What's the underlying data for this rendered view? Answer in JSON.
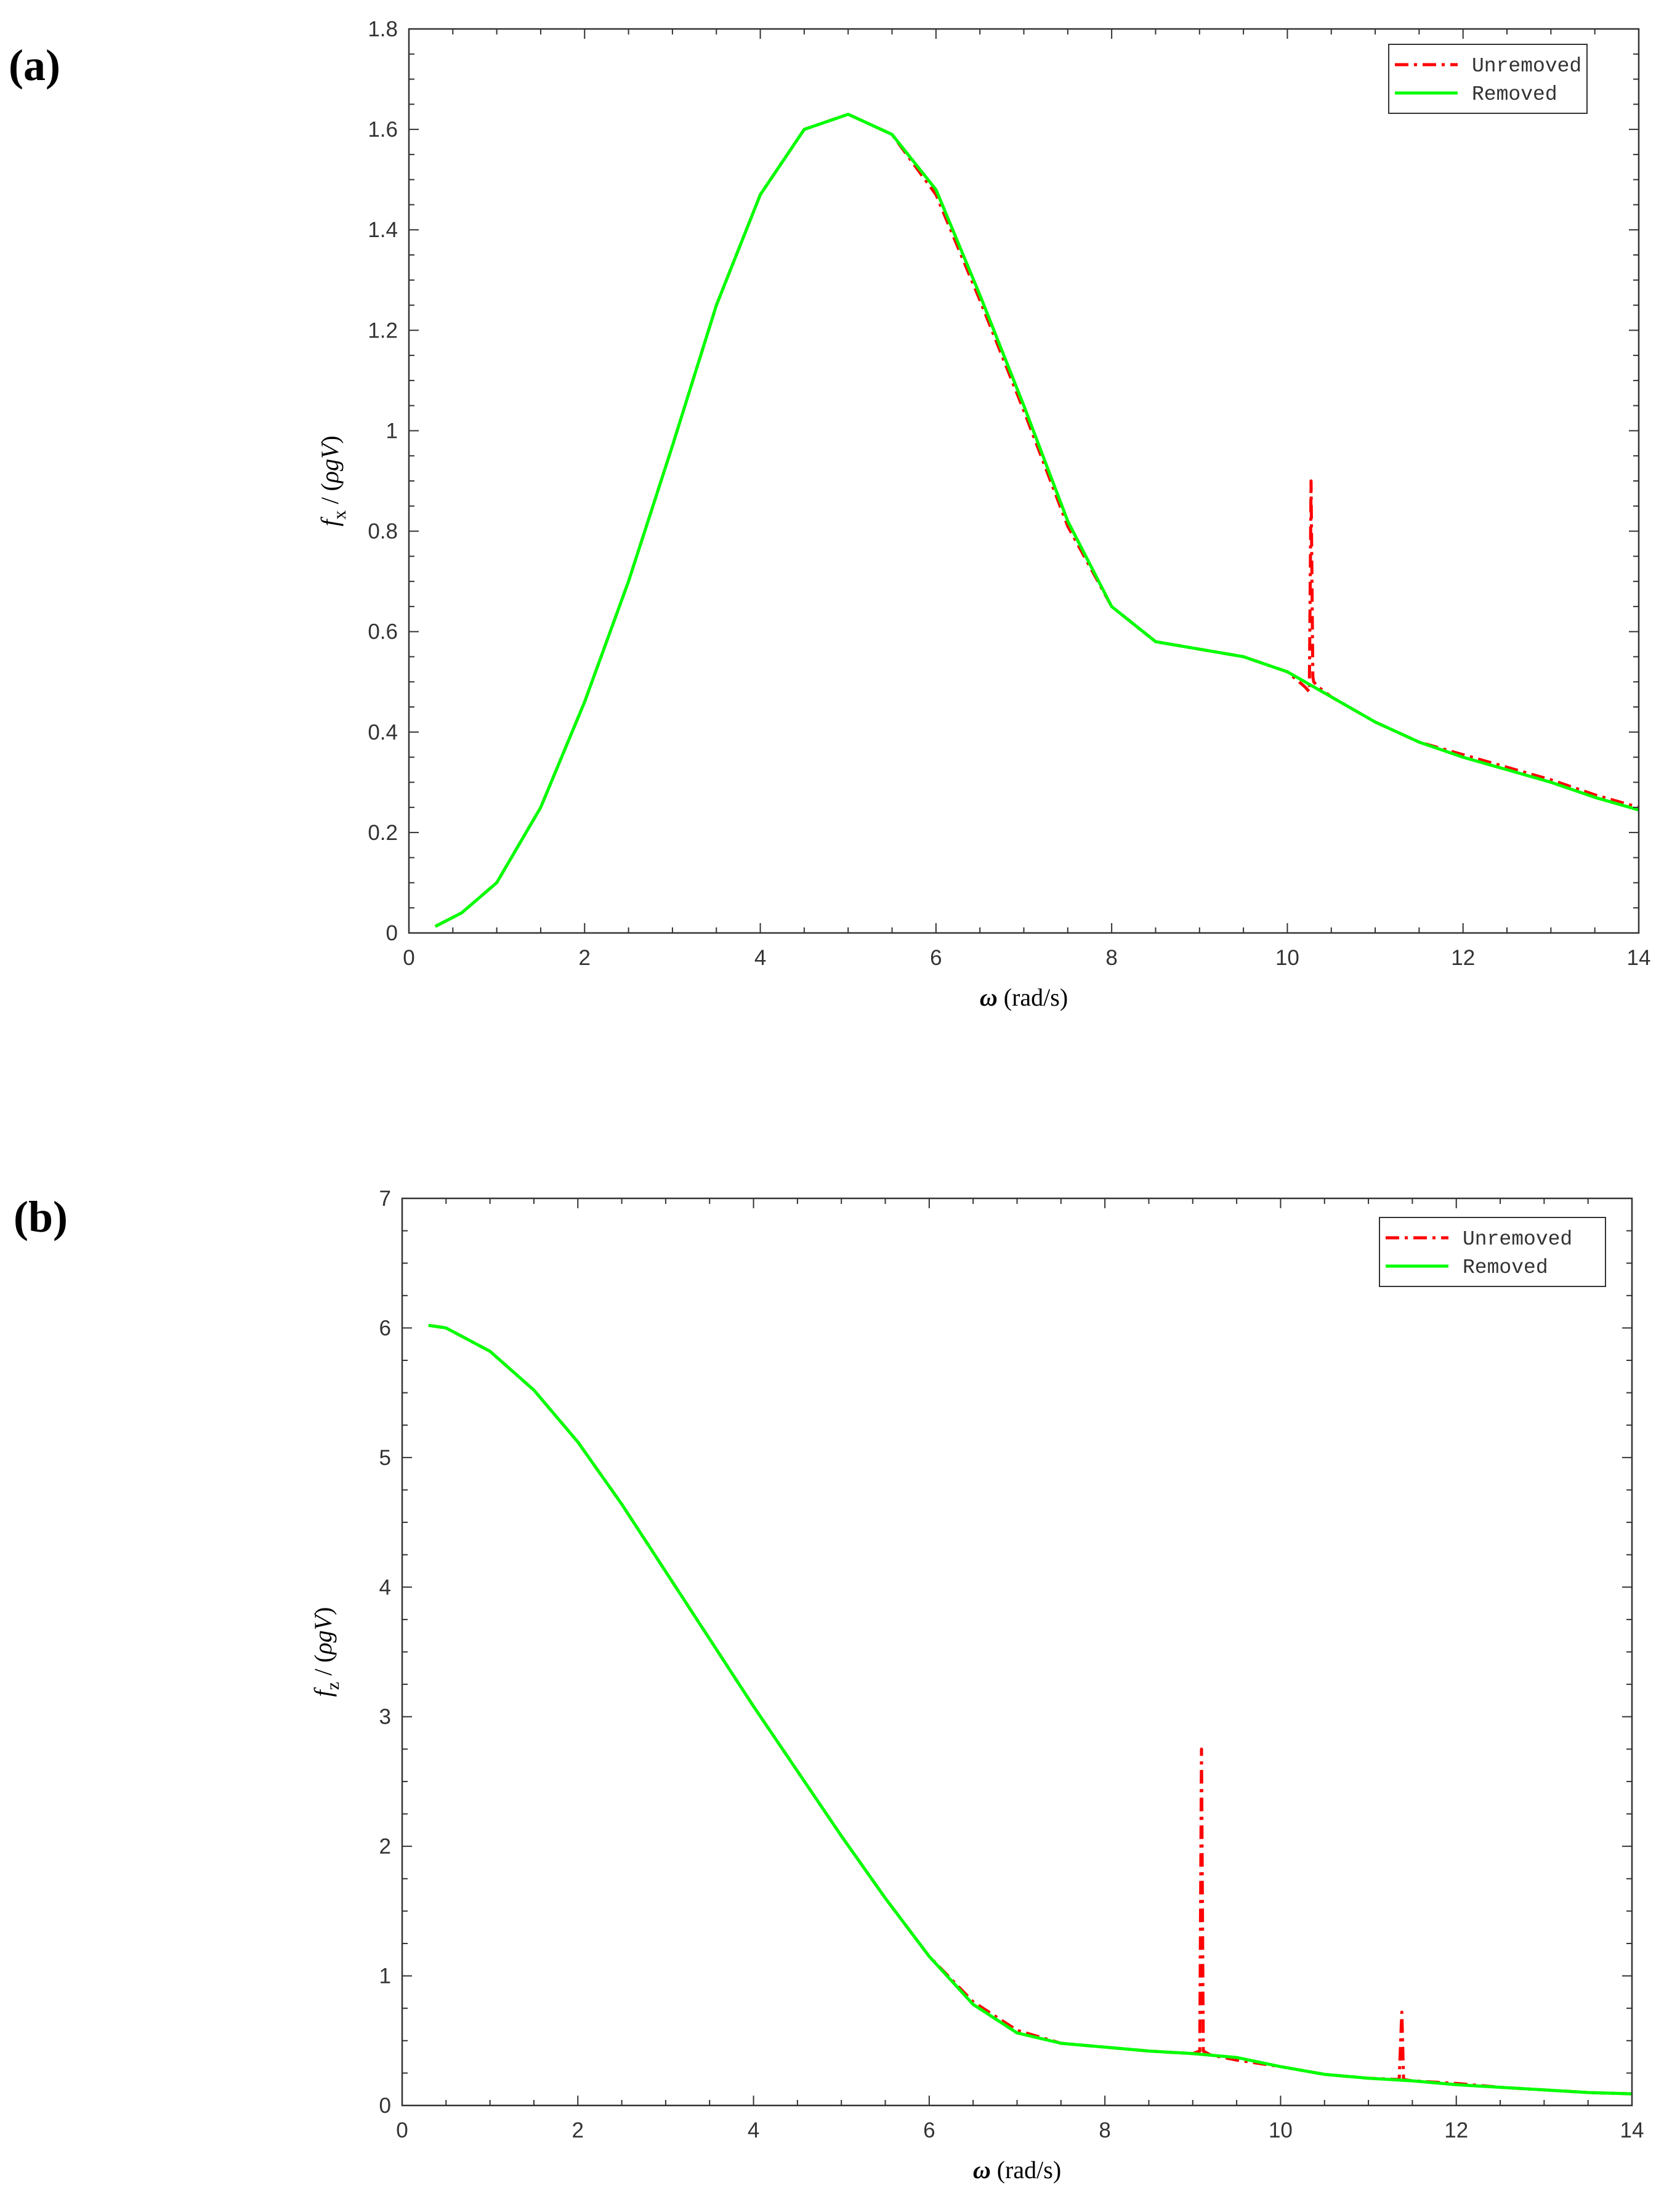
{
  "chart_data": [
    {
      "panel_label": "(a)",
      "type": "line",
      "title": "",
      "xlabel": "ω (rad/s)",
      "ylabel": "f_x / (ρgV)",
      "xlabel_parts": {
        "symbol": "ω",
        "units": " (rad/s)"
      },
      "ylabel_parts": {
        "symbol": "f",
        "subscript": "x",
        "rest": " / (",
        "rho": "ρ",
        "gv": "gV",
        "close": ")"
      },
      "xlim": [
        0,
        14
      ],
      "ylim": [
        0,
        1.8
      ],
      "xticks": [
        0,
        2,
        4,
        6,
        8,
        10,
        12,
        14
      ],
      "xtick_labels": [
        "0",
        "2",
        "4",
        "6",
        "8",
        "10",
        "12",
        "14"
      ],
      "yticks": [
        0,
        0.2,
        0.4,
        0.6,
        0.8,
        1,
        1.2,
        1.4,
        1.6,
        1.8
      ],
      "ytick_labels": [
        "0",
        "0.2",
        "0.4",
        "0.6",
        "0.8",
        "1",
        "1.2",
        "1.4",
        "1.6",
        "1.8"
      ],
      "grid": false,
      "legend": "top-right",
      "series": [
        {
          "name": "Unremoved",
          "color": "#ff0000",
          "style": "dash-dot",
          "x": [
            0.3,
            0.6,
            1,
            1.5,
            2,
            2.5,
            3,
            3.5,
            4,
            4.5,
            5,
            5.5,
            6,
            6.5,
            7,
            7.5,
            8,
            8.5,
            9,
            9.5,
            10,
            10.2,
            10.25,
            10.27,
            10.29,
            10.3,
            10.35,
            10.5,
            11,
            11.5,
            12,
            12.5,
            13,
            13.5,
            14
          ],
          "y": [
            0.013,
            0.04,
            0.1,
            0.25,
            0.46,
            0.7,
            0.97,
            1.25,
            1.47,
            1.6,
            1.63,
            1.59,
            1.47,
            1.26,
            1.04,
            0.81,
            0.65,
            0.58,
            0.565,
            0.55,
            0.52,
            0.49,
            0.48,
            0.9,
            0.51,
            0.5,
            0.49,
            0.47,
            0.42,
            0.38,
            0.355,
            0.33,
            0.305,
            0.275,
            0.25
          ]
        },
        {
          "name": "Removed",
          "color": "#00ff00",
          "style": "solid",
          "x": [
            0.3,
            0.6,
            1,
            1.5,
            2,
            2.5,
            3,
            3.5,
            4,
            4.5,
            5,
            5.5,
            6,
            6.5,
            7,
            7.5,
            8,
            8.5,
            9,
            9.5,
            10,
            10.5,
            11,
            11.5,
            12,
            12.5,
            13,
            13.5,
            14
          ],
          "y": [
            0.013,
            0.04,
            0.1,
            0.25,
            0.46,
            0.7,
            0.97,
            1.25,
            1.47,
            1.6,
            1.63,
            1.59,
            1.48,
            1.27,
            1.05,
            0.82,
            0.65,
            0.58,
            0.565,
            0.55,
            0.52,
            0.47,
            0.42,
            0.38,
            0.35,
            0.325,
            0.3,
            0.27,
            0.245
          ]
        }
      ]
    },
    {
      "panel_label": "(b)",
      "type": "line",
      "title": "",
      "xlabel": "ω (rad/s)",
      "ylabel": "f_z / (ρgV)",
      "xlabel_parts": {
        "symbol": "ω",
        "units": " (rad/s)"
      },
      "ylabel_parts": {
        "symbol": "f",
        "subscript": "z",
        "rest": " / (",
        "rho": "ρ",
        "gv": "gV",
        "close": ")"
      },
      "xlim": [
        0,
        14
      ],
      "ylim": [
        0,
        7
      ],
      "xticks": [
        0,
        2,
        4,
        6,
        8,
        10,
        12,
        14
      ],
      "xtick_labels": [
        "0",
        "2",
        "4",
        "6",
        "8",
        "10",
        "12",
        "14"
      ],
      "yticks": [
        0,
        1,
        2,
        3,
        4,
        5,
        6,
        7
      ],
      "ytick_labels": [
        "0",
        "1",
        "2",
        "3",
        "4",
        "5",
        "6",
        "7"
      ],
      "grid": false,
      "legend": "top-right",
      "series": [
        {
          "name": "Unremoved",
          "color": "#ff0000",
          "style": "dash-dot",
          "x": [
            0.3,
            0.5,
            1,
            1.5,
            2,
            2.5,
            3,
            3.5,
            4,
            4.5,
            5,
            5.5,
            6,
            6.5,
            7,
            7.5,
            8,
            8.5,
            9,
            9.08,
            9.1,
            9.12,
            9.2,
            9.5,
            10,
            10.5,
            11,
            11.35,
            11.38,
            11.4,
            11.5,
            12,
            12.5,
            13,
            13.5,
            14
          ],
          "y": [
            6.02,
            6.0,
            5.82,
            5.52,
            5.12,
            4.64,
            4.12,
            3.6,
            3.08,
            2.58,
            2.08,
            1.6,
            1.15,
            0.8,
            0.58,
            0.48,
            0.45,
            0.42,
            0.4,
            0.42,
            2.75,
            0.42,
            0.39,
            0.35,
            0.3,
            0.24,
            0.21,
            0.2,
            0.72,
            0.2,
            0.19,
            0.17,
            0.14,
            0.12,
            0.1,
            0.09
          ]
        },
        {
          "name": "Removed",
          "color": "#00ff00",
          "style": "solid",
          "x": [
            0.3,
            0.5,
            1,
            1.5,
            2,
            2.5,
            3,
            3.5,
            4,
            4.5,
            5,
            5.5,
            6,
            6.5,
            7,
            7.5,
            8,
            8.5,
            9,
            9.5,
            10,
            10.5,
            11,
            11.5,
            12,
            12.5,
            13,
            13.5,
            14
          ],
          "y": [
            6.02,
            6.0,
            5.82,
            5.52,
            5.12,
            4.64,
            4.12,
            3.6,
            3.08,
            2.58,
            2.08,
            1.6,
            1.15,
            0.78,
            0.56,
            0.48,
            0.45,
            0.42,
            0.4,
            0.37,
            0.3,
            0.24,
            0.21,
            0.19,
            0.16,
            0.14,
            0.12,
            0.1,
            0.09
          ]
        }
      ]
    }
  ]
}
